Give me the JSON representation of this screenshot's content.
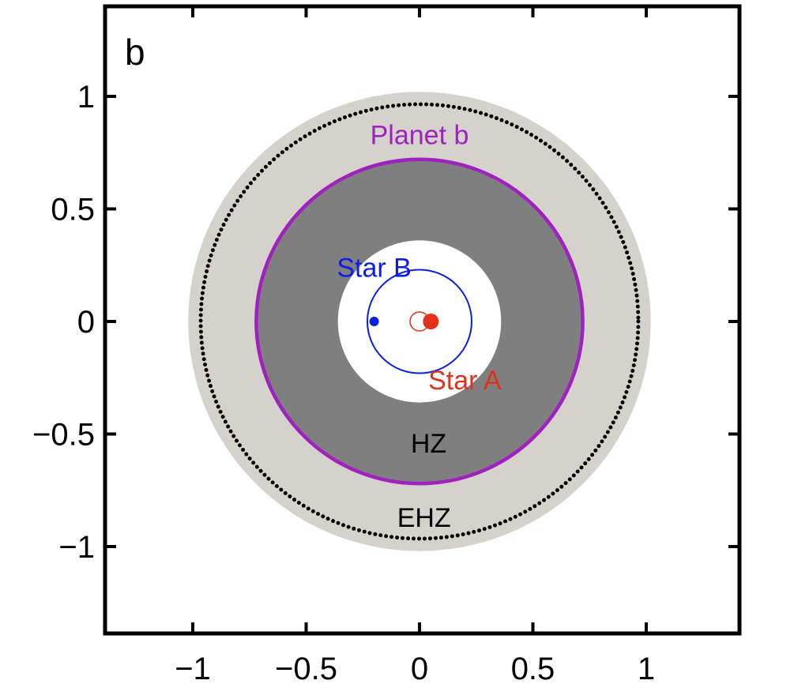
{
  "chart_data": {
    "type": "scatter",
    "panel_label": "b",
    "xlim": [
      -1.4,
      1.4
    ],
    "ylim": [
      -1.4,
      1.4
    ],
    "aspect": "equal",
    "grid": false,
    "xticks": [
      -1,
      -0.5,
      0,
      0.5,
      1
    ],
    "yticks": [
      -1,
      -0.5,
      0,
      0.5,
      1
    ],
    "xtick_labels": [
      "−1",
      "−0.5",
      "0",
      "0.5",
      "1"
    ],
    "ytick_labels": [
      "−1",
      "−0.5",
      "0",
      "0.5",
      "1"
    ],
    "regions": [
      {
        "label": "EHZ",
        "inner_radius": 0.72,
        "outer_radius": 1.02,
        "center": [
          0.0,
          0.0
        ],
        "color": "#d5d2cb"
      },
      {
        "label": "HZ",
        "inner_radius": 0.36,
        "outer_radius": 0.72,
        "center": [
          0.0,
          0.0
        ],
        "color": "#7f7f7f"
      }
    ],
    "orbits": [
      {
        "name": "Planet b",
        "a": 0.72,
        "center": [
          0.0,
          0.0
        ],
        "style": "solid",
        "color": "#a020c0"
      },
      {
        "name": "dotted orbit",
        "a": 0.965,
        "center": [
          0.0,
          0.0
        ],
        "style": "dotted",
        "color": "#000000"
      },
      {
        "name": "Star B",
        "a": 0.23,
        "center": [
          0.0,
          0.0
        ],
        "style": "solid",
        "color": "#0a1ee6"
      }
    ],
    "points": [
      {
        "name": "Star B",
        "x": -0.2,
        "y": 0.0,
        "color": "#0a1ee6",
        "filled": true
      },
      {
        "name": "Star A",
        "x": 0.05,
        "y": 0.0,
        "color": "#e2301a",
        "filled": true
      },
      {
        "name": "Star A",
        "x": 0.0,
        "y": 0.0,
        "color": "#e2301a",
        "filled": false
      }
    ],
    "annotations": [
      {
        "text": "Planet b",
        "x": 0.0,
        "y": 0.83,
        "color": "#a020c0"
      },
      {
        "text": "Star B",
        "x": -0.2,
        "y": 0.24,
        "color": "#0a1ee6"
      },
      {
        "text": "Star A",
        "x": 0.2,
        "y": -0.26,
        "color": "#e2301a"
      },
      {
        "text": "HZ",
        "x": 0.04,
        "y": -0.54,
        "color": "#000000"
      },
      {
        "text": "EHZ",
        "x": 0.02,
        "y": -0.87,
        "color": "#000000"
      }
    ]
  }
}
